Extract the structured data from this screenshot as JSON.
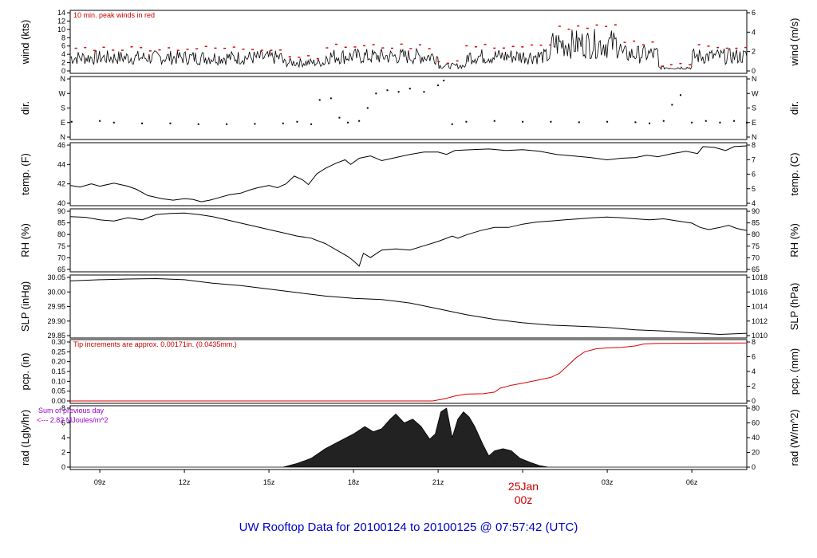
{
  "title": "UW Rooftop Data for 20100124  to  20100125 @ 07:57:42  (UTC)",
  "colors": {
    "line": "#000000",
    "peak": "#dd0000",
    "precip": "#dd0000",
    "note_red": "#cc0000",
    "note_purple": "#9900cc",
    "title": "#0000cc",
    "date": "#cc0000"
  },
  "x_axis": {
    "ticks": [
      {
        "label": "09z",
        "hour": 9
      },
      {
        "label": "12z",
        "hour": 12
      },
      {
        "label": "15z",
        "hour": 15
      },
      {
        "label": "18z",
        "hour": 18
      },
      {
        "label": "21z",
        "hour": 21
      },
      {
        "label": "03z",
        "hour": 27
      },
      {
        "label": "06z",
        "hour": 30
      }
    ],
    "date_label": "25Jan",
    "date_sub": "00z",
    "date_hour": 24,
    "range_hours": [
      7.95,
      31.95
    ]
  },
  "panels": [
    {
      "id": "wind",
      "left_label": "wind (kts)",
      "right_label": "wind (m/s)",
      "left_ticks": [
        "0",
        "2",
        "4",
        "6",
        "8",
        "10",
        "12",
        "14"
      ],
      "right_ticks": [
        "0",
        "2",
        "4",
        "6"
      ],
      "note": "10 min. peak winds in red"
    },
    {
      "id": "dir",
      "left_label": "dir.",
      "right_label": "dir.",
      "left_ticks": [
        "N",
        "E",
        "S",
        "W",
        "N"
      ],
      "right_ticks": [
        "N",
        "E",
        "S",
        "W",
        "N"
      ]
    },
    {
      "id": "temp",
      "left_label": "temp. (F)",
      "right_label": "temp. (C)",
      "left_ticks": [
        "40",
        "42",
        "44",
        "46"
      ],
      "right_ticks": [
        "4",
        "5",
        "6",
        "7",
        "8"
      ]
    },
    {
      "id": "rh",
      "left_label": "RH (%)",
      "right_label": "RH (%)",
      "left_ticks": [
        "65",
        "70",
        "75",
        "80",
        "85",
        "90"
      ],
      "right_ticks": [
        "65",
        "70",
        "75",
        "80",
        "85",
        "90"
      ]
    },
    {
      "id": "slp",
      "left_label": "SLP (inHg)",
      "right_label": "SLP (hPa)",
      "left_ticks": [
        "29.85",
        "29.90",
        "29.95",
        "30.00",
        "30.05"
      ],
      "right_ticks": [
        "1010",
        "1012",
        "1014",
        "1016",
        "1018"
      ]
    },
    {
      "id": "pcp",
      "left_label": "pcp. (in)",
      "right_label": "pcp. (mm)",
      "left_ticks": [
        "0.00",
        "0.05",
        "0.10",
        "0.15",
        "0.20",
        "0.25",
        "0.30"
      ],
      "right_ticks": [
        "0",
        "2",
        "4",
        "6",
        "8"
      ],
      "note": "Tip increments are approx. 0.00171in. (0.0435mm.)"
    },
    {
      "id": "rad",
      "left_label": "rad (Lgly/hr)",
      "right_label": "rad (W/m^2)",
      "left_ticks": [
        "0",
        "2",
        "4",
        "6",
        "8"
      ],
      "right_ticks": [
        "0",
        "20",
        "40",
        "60",
        "80"
      ],
      "note1": "Sum of previous day",
      "note2": "<--- 2.82 MJoules/m^2"
    }
  ],
  "chart_data": {
    "type": "line",
    "x_unit": "hour UTC from 20100124 00z",
    "series": [
      {
        "id": "temp_f",
        "panel": "temp",
        "ylim": [
          39,
          46.5
        ],
        "points": [
          [
            7.95,
            41.3
          ],
          [
            8.3,
            41.1
          ],
          [
            8.7,
            41.5
          ],
          [
            9.0,
            41.2
          ],
          [
            9.5,
            41.6
          ],
          [
            10.0,
            41.2
          ],
          [
            10.3,
            40.8
          ],
          [
            10.7,
            40.0
          ],
          [
            11.2,
            39.6
          ],
          [
            11.6,
            39.4
          ],
          [
            12.0,
            39.6
          ],
          [
            12.3,
            39.5
          ],
          [
            12.6,
            39.2
          ],
          [
            12.9,
            39.4
          ],
          [
            13.2,
            39.7
          ],
          [
            13.6,
            40.1
          ],
          [
            14.0,
            40.3
          ],
          [
            14.3,
            40.7
          ],
          [
            14.6,
            41.0
          ],
          [
            15.0,
            41.3
          ],
          [
            15.3,
            41.0
          ],
          [
            15.6,
            41.5
          ],
          [
            15.9,
            42.5
          ],
          [
            16.2,
            42.0
          ],
          [
            16.4,
            41.4
          ],
          [
            16.7,
            42.8
          ],
          [
            17.0,
            43.5
          ],
          [
            17.4,
            44.2
          ],
          [
            17.7,
            44.6
          ],
          [
            17.9,
            44.0
          ],
          [
            18.2,
            44.8
          ],
          [
            18.6,
            45.1
          ],
          [
            19.0,
            44.5
          ],
          [
            19.5,
            44.9
          ],
          [
            20.0,
            45.3
          ],
          [
            20.5,
            45.6
          ],
          [
            21.0,
            45.6
          ],
          [
            21.3,
            45.3
          ],
          [
            21.6,
            45.8
          ],
          [
            22.2,
            45.9
          ],
          [
            22.8,
            46.0
          ],
          [
            23.4,
            45.8
          ],
          [
            24.0,
            45.9
          ],
          [
            24.6,
            45.7
          ],
          [
            25.2,
            45.3
          ],
          [
            25.8,
            45.1
          ],
          [
            26.4,
            44.9
          ],
          [
            27.0,
            44.6
          ],
          [
            27.5,
            44.8
          ],
          [
            28.0,
            44.9
          ],
          [
            28.4,
            45.2
          ],
          [
            28.8,
            45.0
          ],
          [
            29.3,
            45.4
          ],
          [
            29.8,
            45.7
          ],
          [
            30.2,
            45.4
          ],
          [
            30.4,
            46.3
          ],
          [
            30.8,
            46.2
          ],
          [
            31.2,
            45.8
          ],
          [
            31.5,
            46.3
          ],
          [
            31.95,
            46.4
          ]
        ]
      },
      {
        "id": "rh_pct",
        "panel": "rh",
        "ylim": [
          65,
          92
        ],
        "points": [
          [
            7.95,
            89.5
          ],
          [
            8.5,
            89.2
          ],
          [
            9.0,
            88.0
          ],
          [
            9.5,
            87.5
          ],
          [
            10.0,
            89.0
          ],
          [
            10.5,
            88.0
          ],
          [
            11.0,
            90.5
          ],
          [
            11.5,
            91.0
          ],
          [
            12.0,
            91.2
          ],
          [
            12.5,
            90.5
          ],
          [
            13.0,
            89.5
          ],
          [
            13.5,
            88.0
          ],
          [
            14.0,
            86.5
          ],
          [
            14.5,
            85.0
          ],
          [
            15.0,
            83.5
          ],
          [
            15.5,
            82.0
          ],
          [
            16.0,
            80.5
          ],
          [
            16.5,
            79.5
          ],
          [
            17.0,
            77.0
          ],
          [
            17.4,
            74.0
          ],
          [
            17.8,
            71.0
          ],
          [
            18.0,
            69.0
          ],
          [
            18.2,
            66.5
          ],
          [
            18.35,
            72.5
          ],
          [
            18.6,
            70.5
          ],
          [
            19.0,
            74.0
          ],
          [
            19.5,
            74.5
          ],
          [
            20.0,
            74.0
          ],
          [
            20.5,
            76.0
          ],
          [
            21.0,
            78.0
          ],
          [
            21.5,
            80.5
          ],
          [
            21.7,
            79.5
          ],
          [
            22.0,
            81.0
          ],
          [
            22.5,
            83.0
          ],
          [
            23.0,
            84.5
          ],
          [
            23.5,
            84.5
          ],
          [
            24.0,
            86.0
          ],
          [
            24.5,
            87.0
          ],
          [
            25.0,
            87.5
          ],
          [
            25.5,
            88.0
          ],
          [
            26.0,
            88.5
          ],
          [
            26.5,
            89.0
          ],
          [
            27.0,
            89.3
          ],
          [
            27.5,
            89.0
          ],
          [
            28.0,
            88.5
          ],
          [
            28.5,
            88.0
          ],
          [
            29.0,
            88.5
          ],
          [
            29.5,
            87.5
          ],
          [
            30.0,
            86.5
          ],
          [
            30.3,
            84.5
          ],
          [
            30.6,
            83.5
          ],
          [
            31.0,
            84.5
          ],
          [
            31.3,
            85.5
          ],
          [
            31.6,
            84.0
          ],
          [
            31.95,
            83.0
          ]
        ]
      },
      {
        "id": "slp_inhg",
        "panel": "slp",
        "ylim": [
          29.82,
          30.07
        ],
        "points": [
          [
            7.95,
            30.055
          ],
          [
            9.0,
            30.06
          ],
          [
            10.0,
            30.063
          ],
          [
            11.0,
            30.065
          ],
          [
            12.0,
            30.06
          ],
          [
            13.0,
            30.045
          ],
          [
            14.0,
            30.035
          ],
          [
            15.0,
            30.02
          ],
          [
            16.0,
            30.005
          ],
          [
            17.0,
            29.99
          ],
          [
            18.0,
            29.98
          ],
          [
            19.0,
            29.975
          ],
          [
            20.0,
            29.96
          ],
          [
            21.0,
            29.935
          ],
          [
            22.0,
            29.91
          ],
          [
            23.0,
            29.89
          ],
          [
            24.0,
            29.875
          ],
          [
            25.0,
            29.865
          ],
          [
            26.0,
            29.86
          ],
          [
            27.0,
            29.855
          ],
          [
            28.0,
            29.845
          ],
          [
            29.0,
            29.84
          ],
          [
            30.0,
            29.832
          ],
          [
            31.0,
            29.825
          ],
          [
            31.95,
            29.83
          ]
        ]
      },
      {
        "id": "pcp_in",
        "panel": "pcp",
        "ylim": [
          0,
          0.3
        ],
        "color": "#dd0000",
        "points": [
          [
            7.95,
            0
          ],
          [
            20.8,
            0
          ],
          [
            21.2,
            0.01
          ],
          [
            21.6,
            0.025
          ],
          [
            22.0,
            0.035
          ],
          [
            22.6,
            0.037
          ],
          [
            23.0,
            0.045
          ],
          [
            23.2,
            0.065
          ],
          [
            23.6,
            0.08
          ],
          [
            24.0,
            0.09
          ],
          [
            24.5,
            0.105
          ],
          [
            25.0,
            0.12
          ],
          [
            25.3,
            0.14
          ],
          [
            25.6,
            0.18
          ],
          [
            25.9,
            0.22
          ],
          [
            26.2,
            0.25
          ],
          [
            26.6,
            0.265
          ],
          [
            27.0,
            0.27
          ],
          [
            27.5,
            0.272
          ],
          [
            28.0,
            0.28
          ],
          [
            28.3,
            0.29
          ],
          [
            28.8,
            0.293
          ],
          [
            31.95,
            0.295
          ]
        ]
      },
      {
        "id": "rad_lgly",
        "panel": "rad",
        "ylim": [
          0,
          8
        ],
        "fill": true,
        "points": [
          [
            7.95,
            0
          ],
          [
            15.5,
            0
          ],
          [
            16.0,
            0.5
          ],
          [
            16.5,
            1.2
          ],
          [
            17.0,
            2.5
          ],
          [
            17.5,
            3.5
          ],
          [
            18.0,
            4.5
          ],
          [
            18.4,
            5.5
          ],
          [
            18.7,
            4.8
          ],
          [
            19.0,
            5.2
          ],
          [
            19.3,
            6.5
          ],
          [
            19.5,
            7.2
          ],
          [
            19.8,
            6.0
          ],
          [
            20.1,
            6.5
          ],
          [
            20.4,
            5.5
          ],
          [
            20.7,
            3.8
          ],
          [
            20.9,
            4.5
          ],
          [
            21.1,
            7.5
          ],
          [
            21.3,
            8.0
          ],
          [
            21.5,
            4.0
          ],
          [
            21.7,
            6.5
          ],
          [
            21.9,
            7.5
          ],
          [
            22.1,
            6.8
          ],
          [
            22.3,
            5.5
          ],
          [
            22.6,
            3.0
          ],
          [
            22.8,
            1.5
          ],
          [
            23.0,
            2.2
          ],
          [
            23.3,
            2.5
          ],
          [
            23.6,
            2.2
          ],
          [
            23.9,
            1.2
          ],
          [
            24.3,
            0.6
          ],
          [
            24.6,
            0.2
          ],
          [
            24.9,
            0
          ],
          [
            31.95,
            0
          ]
        ]
      },
      {
        "id": "dir_deg",
        "panel": "dir",
        "ylim": [
          0,
          360
        ],
        "type": "scatter",
        "points": [
          [
            8,
            95
          ],
          [
            9,
            100
          ],
          [
            9.5,
            90
          ],
          [
            10.5,
            85
          ],
          [
            11.5,
            85
          ],
          [
            12.5,
            80
          ],
          [
            13.5,
            80
          ],
          [
            14.5,
            82
          ],
          [
            15.5,
            85
          ],
          [
            16.0,
            95
          ],
          [
            16.5,
            80
          ],
          [
            16.8,
            230
          ],
          [
            17.2,
            240
          ],
          [
            17.5,
            120
          ],
          [
            17.8,
            90
          ],
          [
            18.2,
            100
          ],
          [
            18.5,
            180
          ],
          [
            18.8,
            270
          ],
          [
            19.2,
            290
          ],
          [
            19.6,
            280
          ],
          [
            20.0,
            300
          ],
          [
            20.5,
            280
          ],
          [
            21.0,
            320
          ],
          [
            21.2,
            350
          ],
          [
            21.5,
            80
          ],
          [
            22.0,
            95
          ],
          [
            23.0,
            100
          ],
          [
            24.0,
            95
          ],
          [
            25.0,
            95
          ],
          [
            26.0,
            92
          ],
          [
            27.0,
            95
          ],
          [
            28.0,
            92
          ],
          [
            28.5,
            85
          ],
          [
            29.0,
            100
          ],
          [
            29.3,
            200
          ],
          [
            29.6,
            260
          ],
          [
            30.0,
            90
          ],
          [
            30.5,
            100
          ],
          [
            31.0,
            90
          ],
          [
            31.5,
            100
          ],
          [
            31.95,
            90
          ]
        ]
      }
    ]
  }
}
